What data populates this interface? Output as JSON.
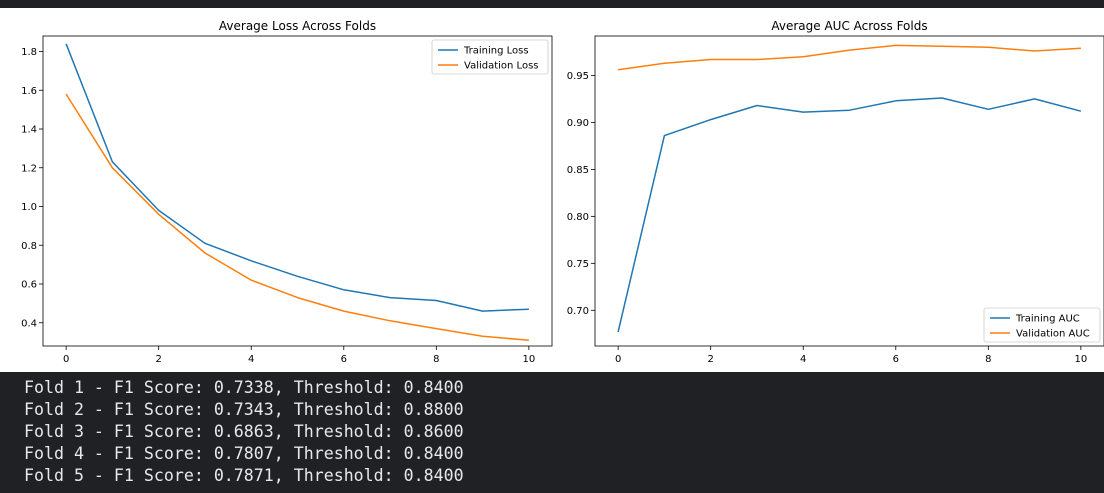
{
  "chart_data": [
    {
      "type": "line",
      "title": "Average Loss Across Folds",
      "xlabel": "",
      "ylabel": "",
      "x": [
        0,
        1,
        2,
        3,
        4,
        5,
        6,
        7,
        8,
        9,
        10
      ],
      "xlim": [
        -0.5,
        10.5
      ],
      "ylim": [
        0.28,
        1.88
      ],
      "xticks": [
        0,
        2,
        4,
        6,
        8,
        10
      ],
      "yticks": [
        0.4,
        0.6,
        0.8,
        1.0,
        1.2,
        1.4,
        1.6,
        1.8
      ],
      "ytick_decimals": 1,
      "grid": false,
      "legend_position": "upper right",
      "series": [
        {
          "name": "Training Loss",
          "color": "#1f77b4",
          "values": [
            1.84,
            1.23,
            0.98,
            0.81,
            0.72,
            0.64,
            0.57,
            0.53,
            0.515,
            0.46,
            0.47
          ]
        },
        {
          "name": "Validation Loss",
          "color": "#ff7f0e",
          "values": [
            1.58,
            1.2,
            0.96,
            0.76,
            0.62,
            0.53,
            0.46,
            0.41,
            0.37,
            0.33,
            0.31
          ]
        }
      ]
    },
    {
      "type": "line",
      "title": "Average AUC Across Folds",
      "xlabel": "",
      "ylabel": "",
      "x": [
        0,
        1,
        2,
        3,
        4,
        5,
        6,
        7,
        8,
        9,
        10
      ],
      "xlim": [
        -0.5,
        10.5
      ],
      "ylim": [
        0.662,
        0.992
      ],
      "xticks": [
        0,
        2,
        4,
        6,
        8,
        10
      ],
      "yticks": [
        0.7,
        0.75,
        0.8,
        0.85,
        0.9,
        0.95
      ],
      "ytick_decimals": 2,
      "grid": false,
      "legend_position": "lower right",
      "series": [
        {
          "name": "Training AUC",
          "color": "#1f77b4",
          "values": [
            0.677,
            0.886,
            0.903,
            0.918,
            0.911,
            0.913,
            0.923,
            0.926,
            0.914,
            0.925,
            0.912
          ]
        },
        {
          "name": "Validation AUC",
          "color": "#ff7f0e",
          "values": [
            0.956,
            0.963,
            0.967,
            0.967,
            0.97,
            0.977,
            0.982,
            0.981,
            0.98,
            0.976,
            0.979
          ]
        }
      ]
    }
  ],
  "output": {
    "lines": [
      "Fold 1 - F1 Score: 0.7338, Threshold: 0.8400",
      "Fold 2 - F1 Score: 0.7343, Threshold: 0.8800",
      "Fold 3 - F1 Score: 0.6863, Threshold: 0.8600",
      "Fold 4 - F1 Score: 0.7807, Threshold: 0.8400",
      "Fold 5 - F1 Score: 0.7871, Threshold: 0.8400"
    ]
  }
}
